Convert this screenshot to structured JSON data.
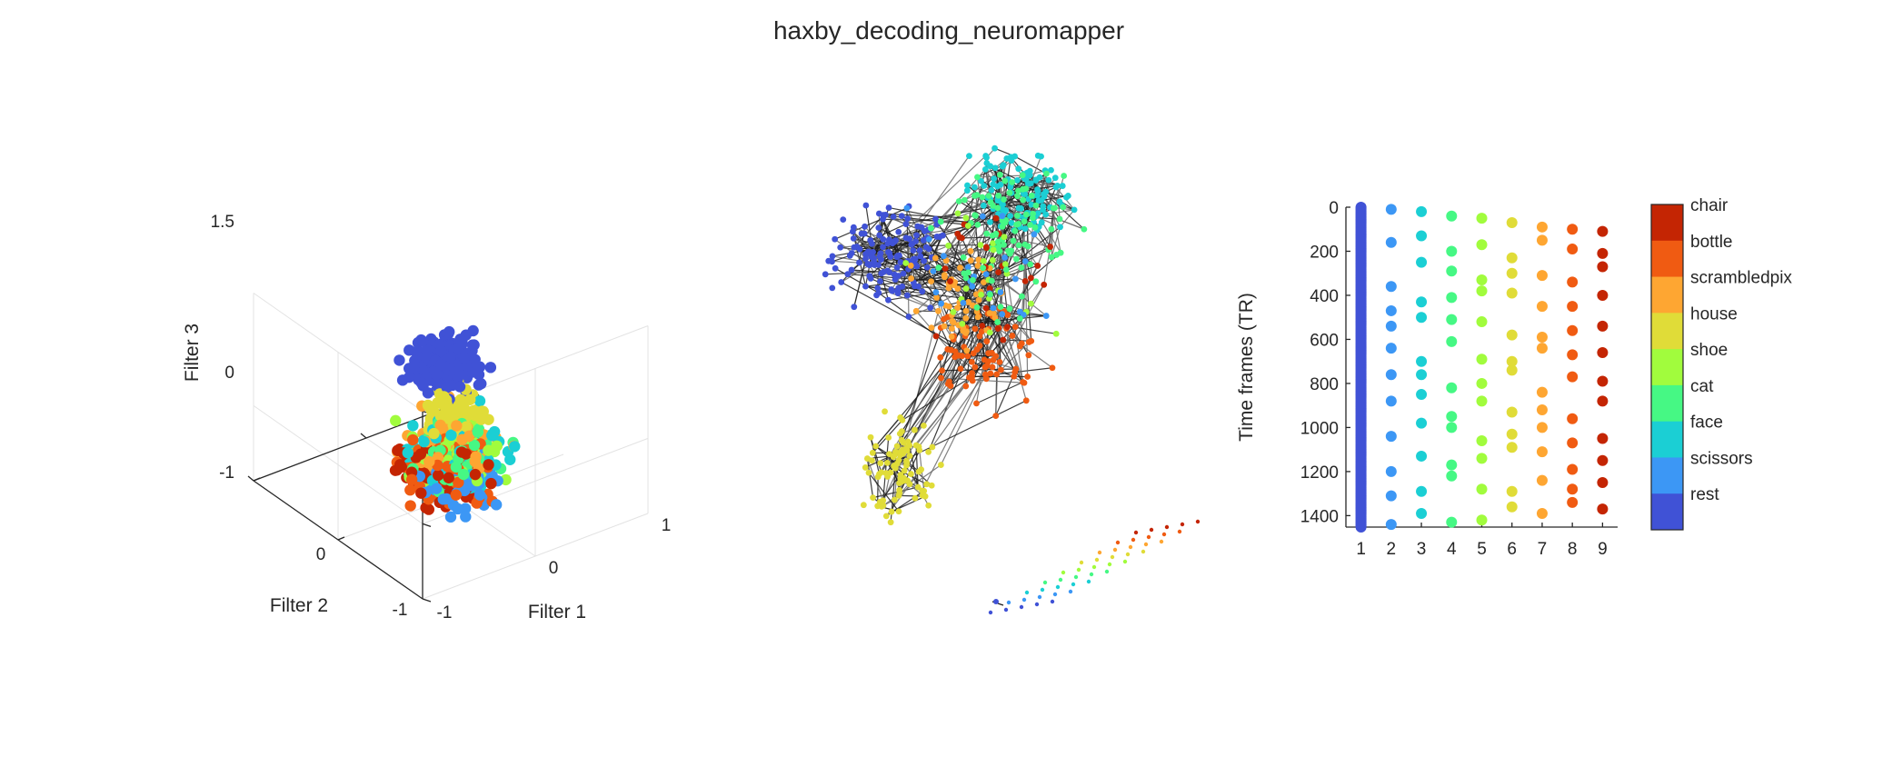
{
  "title": "haxby_decoding_neuromapper",
  "colors": {
    "rest": "#4052d6",
    "scissors": "#3c97f5",
    "face": "#1bcfd4",
    "cat": "#46f884",
    "shoe": "#a1fc3d",
    "house": "#e0dc38",
    "scrambledpix": "#fea632",
    "bottle": "#f05b12",
    "chair": "#c42503"
  },
  "chart_data": [
    {
      "type": "scatter",
      "projection": "3d",
      "xlabel": "Filter 1",
      "ylabel": "Filter 2",
      "zlabel": "Filter 3",
      "x_ticks": [
        "-1",
        "0",
        "1"
      ],
      "y_ticks": [
        "-1",
        "0"
      ],
      "z_ticks": [
        "-1",
        "0",
        "1.5"
      ],
      "xlim": [
        -1,
        1
      ],
      "ylim": [
        -1,
        1
      ],
      "zlim": [
        -1,
        1.5
      ],
      "grid": true,
      "clusters": [
        {
          "category": "rest",
          "x": 0.4,
          "y": -0.6,
          "z": 0.1,
          "n": 230,
          "spread": 0.22
        },
        {
          "category": "house",
          "x": -0.35,
          "y": 0.5,
          "z": 0.7,
          "n": 90,
          "spread": 0.2
        },
        {
          "category": "chair",
          "x": -0.4,
          "y": 0.4,
          "z": -0.1,
          "n": 80,
          "spread": 0.28
        },
        {
          "category": "bottle",
          "x": -0.3,
          "y": 0.4,
          "z": -0.2,
          "n": 80,
          "spread": 0.3
        },
        {
          "category": "scrambledpix",
          "x": -0.2,
          "y": 0.3,
          "z": 0.05,
          "n": 60,
          "spread": 0.3
        },
        {
          "category": "shoe",
          "x": -0.1,
          "y": 0.2,
          "z": -0.25,
          "n": 70,
          "spread": 0.3
        },
        {
          "category": "cat",
          "x": 0.0,
          "y": 0.1,
          "z": -0.35,
          "n": 70,
          "spread": 0.3
        },
        {
          "category": "face",
          "x": 0.1,
          "y": 0.0,
          "z": -0.45,
          "n": 80,
          "spread": 0.3
        },
        {
          "category": "scissors",
          "x": -0.15,
          "y": 0.3,
          "z": -0.45,
          "n": 60,
          "spread": 0.3
        }
      ]
    },
    {
      "type": "network",
      "note_visible": "",
      "clusters": [
        {
          "category": "rest",
          "n": 140
        },
        {
          "category": "house",
          "n": 90
        },
        {
          "category": "face",
          "n": 110
        },
        {
          "category": "cat",
          "n": 70
        },
        {
          "category": "bottle",
          "n": 80
        },
        {
          "category": "scrambledpix",
          "n": 60
        }
      ],
      "chain_categories": [
        "rest",
        "scissors",
        "face",
        "cat",
        "shoe",
        "house",
        "scrambledpix",
        "bottle",
        "chair"
      ]
    },
    {
      "type": "scatter",
      "ylabel": "Time frames (TR)",
      "xlabel": "",
      "x_ticks": [
        "1",
        "2",
        "3",
        "4",
        "5",
        "6",
        "7",
        "8",
        "9"
      ],
      "y_ticks": [
        "0",
        "200",
        "400",
        "600",
        "800",
        "1000",
        "1200",
        "1400"
      ],
      "xlim": [
        0.5,
        9.5
      ],
      "ylim": [
        0,
        1452
      ],
      "y_reversed": true,
      "series": [
        {
          "category": "rest",
          "x": 1,
          "values": "continuous 0-1452"
        },
        {
          "category": "scissors",
          "x": 2,
          "values": [
            10,
            160,
            360,
            470,
            540,
            640,
            760,
            880,
            1040,
            1200,
            1310,
            1440
          ]
        },
        {
          "category": "face",
          "x": 3,
          "values": [
            20,
            130,
            250,
            430,
            500,
            700,
            760,
            850,
            980,
            1130,
            1290,
            1390
          ]
        },
        {
          "category": "cat",
          "x": 4,
          "values": [
            40,
            200,
            290,
            410,
            510,
            610,
            820,
            950,
            1000,
            1170,
            1220,
            1430
          ]
        },
        {
          "category": "shoe",
          "x": 5,
          "values": [
            50,
            170,
            330,
            380,
            520,
            690,
            800,
            880,
            1060,
            1140,
            1280,
            1420
          ]
        },
        {
          "category": "house",
          "x": 6,
          "values": [
            70,
            230,
            300,
            390,
            580,
            700,
            740,
            930,
            1030,
            1090,
            1290,
            1360
          ]
        },
        {
          "category": "scrambledpix",
          "x": 7,
          "values": [
            90,
            150,
            310,
            450,
            590,
            640,
            840,
            920,
            1000,
            1110,
            1240,
            1390
          ]
        },
        {
          "category": "bottle",
          "x": 8,
          "values": [
            100,
            190,
            340,
            450,
            560,
            670,
            770,
            960,
            1070,
            1190,
            1280,
            1340
          ]
        },
        {
          "category": "chair",
          "x": 9,
          "values": [
            110,
            210,
            270,
            400,
            540,
            660,
            790,
            880,
            1050,
            1150,
            1250,
            1370
          ]
        }
      ]
    }
  ],
  "colorbar": {
    "labels": [
      "chair",
      "bottle",
      "scrambledpix",
      "house",
      "shoe",
      "cat",
      "face",
      "scissors",
      "rest"
    ]
  }
}
